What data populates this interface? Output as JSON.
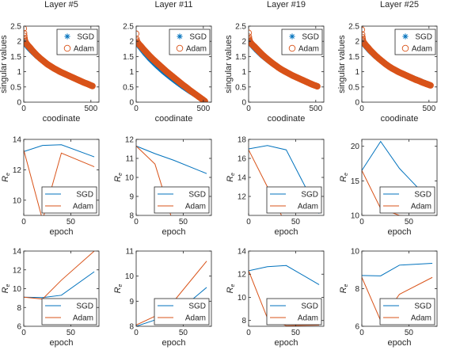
{
  "colors": {
    "sgd": "#0072BD",
    "adam": "#D95319",
    "axis": "#262626"
  },
  "chart_data": [
    {
      "type": "scatter",
      "title": "Layer #5",
      "xlabel": "coodinate",
      "ylabel": "singular values",
      "xlim": [
        0,
        560
      ],
      "ylim": [
        0,
        2.5
      ],
      "xticks": [
        {
          "v": 0,
          "t": "0"
        },
        {
          "v": 500,
          "t": "500"
        }
      ],
      "yticks": [
        {
          "v": 0,
          "t": "0"
        },
        {
          "v": 0.5,
          "t": "0.5"
        },
        {
          "v": 1,
          "t": "1"
        },
        {
          "v": 1.5,
          "t": "1.5"
        },
        {
          "v": 2,
          "t": "2"
        },
        {
          "v": 2.5,
          "t": "2.5"
        }
      ],
      "legend": "top-right",
      "series": [
        {
          "name": "SGD",
          "marker": "star",
          "color": "#0072BD",
          "x": [
            0,
            10,
            30,
            60,
            100,
            150,
            200,
            250,
            300,
            350,
            400,
            450,
            500,
            512
          ],
          "y": [
            2.0,
            1.93,
            1.82,
            1.68,
            1.51,
            1.33,
            1.18,
            1.05,
            0.94,
            0.84,
            0.74,
            0.65,
            0.56,
            0.53
          ]
        },
        {
          "name": "Adam",
          "marker": "circle",
          "color": "#D95319",
          "x": [
            0,
            2,
            4,
            6,
            8,
            10,
            15,
            20,
            30,
            45,
            60,
            80,
            100,
            125,
            150,
            175,
            200,
            225,
            250,
            275,
            300,
            325,
            350,
            375,
            400,
            425,
            450,
            475,
            500,
            512
          ],
          "y": [
            2.42,
            2.27,
            2.18,
            2.1,
            2.05,
            2.01,
            1.97,
            1.93,
            1.87,
            1.8,
            1.72,
            1.62,
            1.53,
            1.43,
            1.34,
            1.25,
            1.18,
            1.11,
            1.05,
            0.99,
            0.94,
            0.89,
            0.84,
            0.79,
            0.74,
            0.69,
            0.64,
            0.6,
            0.55,
            0.53
          ]
        }
      ]
    },
    {
      "type": "scatter",
      "title": "Layer #11",
      "xlabel": "coodinate",
      "ylabel": "",
      "xlim": [
        0,
        560
      ],
      "ylim": [
        0,
        2.5
      ],
      "xticks": [
        {
          "v": 0,
          "t": "0"
        },
        {
          "v": 500,
          "t": "500"
        }
      ],
      "yticks": [
        {
          "v": 0,
          "t": "0"
        },
        {
          "v": 0.5,
          "t": "0.5"
        },
        {
          "v": 1,
          "t": "1"
        },
        {
          "v": 1.5,
          "t": "1.5"
        },
        {
          "v": 2,
          "t": "2"
        },
        {
          "v": 2.5,
          "t": "2.5"
        }
      ],
      "legend": "top-right",
      "series": [
        {
          "name": "SGD",
          "marker": "star",
          "color": "#0072BD",
          "x": [
            0,
            10,
            30,
            60,
            100,
            150,
            200,
            250,
            300,
            350,
            400,
            450,
            500,
            512
          ],
          "y": [
            1.98,
            1.92,
            1.81,
            1.64,
            1.44,
            1.22,
            1.02,
            0.84,
            0.67,
            0.51,
            0.36,
            0.22,
            0.08,
            0.03
          ]
        },
        {
          "name": "Adam",
          "marker": "circle",
          "color": "#D95319",
          "x": [
            0,
            2,
            5,
            10,
            20,
            35,
            50,
            75,
            100,
            125,
            150,
            175,
            200,
            225,
            250,
            275,
            300,
            325,
            350,
            375,
            400,
            425,
            450,
            475,
            500,
            512
          ],
          "y": [
            2.25,
            2.08,
            2.02,
            1.97,
            1.91,
            1.84,
            1.76,
            1.64,
            1.52,
            1.41,
            1.31,
            1.21,
            1.11,
            1.01,
            0.92,
            0.83,
            0.74,
            0.65,
            0.56,
            0.48,
            0.39,
            0.31,
            0.23,
            0.15,
            0.07,
            0.03
          ]
        }
      ]
    },
    {
      "type": "scatter",
      "title": "Layer #19",
      "xlabel": "coodinate",
      "ylabel": "singular values",
      "xlim": [
        0,
        560
      ],
      "ylim": [
        0,
        2.5
      ],
      "xticks": [
        {
          "v": 0,
          "t": "0"
        },
        {
          "v": 500,
          "t": "500"
        }
      ],
      "yticks": [
        {
          "v": 0,
          "t": "0"
        },
        {
          "v": 0.5,
          "t": "0.5"
        },
        {
          "v": 1,
          "t": "1"
        },
        {
          "v": 1.5,
          "t": "1.5"
        },
        {
          "v": 2,
          "t": "2"
        },
        {
          "v": 2.5,
          "t": "2.5"
        }
      ],
      "legend": "top-right",
      "series": [
        {
          "name": "SGD",
          "marker": "star",
          "color": "#0072BD",
          "x": [
            0,
            10,
            30,
            60,
            100,
            150,
            200,
            250,
            300,
            350,
            400,
            450,
            500,
            512
          ],
          "y": [
            2.0,
            1.95,
            1.85,
            1.71,
            1.54,
            1.36,
            1.2,
            1.06,
            0.94,
            0.83,
            0.73,
            0.64,
            0.55,
            0.52
          ]
        },
        {
          "name": "Adam",
          "marker": "circle",
          "color": "#D95319",
          "x": [
            0,
            2,
            4,
            6,
            8,
            10,
            15,
            20,
            30,
            45,
            60,
            80,
            100,
            125,
            150,
            175,
            200,
            225,
            250,
            275,
            300,
            325,
            350,
            375,
            400,
            425,
            450,
            475,
            500,
            512
          ],
          "y": [
            2.28,
            2.15,
            2.08,
            2.04,
            2.01,
            1.99,
            1.96,
            1.93,
            1.88,
            1.82,
            1.75,
            1.66,
            1.57,
            1.47,
            1.38,
            1.29,
            1.21,
            1.13,
            1.06,
            1.0,
            0.94,
            0.88,
            0.83,
            0.78,
            0.73,
            0.68,
            0.63,
            0.58,
            0.54,
            0.52
          ]
        }
      ]
    },
    {
      "type": "scatter",
      "title": "Layer #25",
      "xlabel": "coodinate",
      "ylabel": "singular values",
      "xlim": [
        0,
        560
      ],
      "ylim": [
        0,
        2.5
      ],
      "xticks": [
        {
          "v": 0,
          "t": "0"
        },
        {
          "v": 500,
          "t": "500"
        }
      ],
      "yticks": [
        {
          "v": 0,
          "t": "0"
        },
        {
          "v": 0.5,
          "t": "0.5"
        },
        {
          "v": 1,
          "t": "1"
        },
        {
          "v": 1.5,
          "t": "1.5"
        },
        {
          "v": 2,
          "t": "2"
        },
        {
          "v": 2.5,
          "t": "2.5"
        }
      ],
      "legend": "top-right",
      "series": [
        {
          "name": "SGD",
          "marker": "star",
          "color": "#0072BD",
          "x": [
            0,
            10,
            30,
            60,
            100,
            150,
            200,
            250,
            300,
            350,
            400,
            450,
            500,
            512
          ],
          "y": [
            2.0,
            1.94,
            1.84,
            1.69,
            1.52,
            1.34,
            1.18,
            1.05,
            0.94,
            0.85,
            0.76,
            0.67,
            0.58,
            0.55
          ]
        },
        {
          "name": "Adam",
          "marker": "circle",
          "color": "#D95319",
          "x": [
            0,
            2,
            4,
            6,
            8,
            10,
            15,
            20,
            30,
            45,
            60,
            80,
            100,
            125,
            150,
            175,
            200,
            225,
            250,
            275,
            300,
            325,
            350,
            375,
            400,
            425,
            450,
            475,
            500,
            512
          ],
          "y": [
            2.38,
            2.23,
            2.14,
            2.08,
            2.03,
            2.0,
            1.96,
            1.93,
            1.87,
            1.8,
            1.72,
            1.63,
            1.54,
            1.44,
            1.35,
            1.26,
            1.18,
            1.11,
            1.05,
            0.99,
            0.94,
            0.89,
            0.84,
            0.79,
            0.74,
            0.7,
            0.65,
            0.61,
            0.57,
            0.55
          ]
        }
      ]
    },
    {
      "type": "line",
      "xlabel": "epoch",
      "ylabel": "R",
      "xlim": [
        0,
        80
      ],
      "ylim": [
        9,
        14
      ],
      "xticks": [
        {
          "v": 0,
          "t": "0"
        },
        {
          "v": 50,
          "t": "50"
        }
      ],
      "yticks": [
        {
          "v": 10,
          "t": "10"
        },
        {
          "v": 12,
          "t": "12"
        },
        {
          "v": 14,
          "t": "14"
        }
      ],
      "legend": "bottom-right",
      "series": [
        {
          "name": "SGD",
          "color": "#0072BD",
          "x": [
            0,
            20,
            40,
            75
          ],
          "y": [
            13.2,
            13.6,
            13.65,
            12.85
          ]
        },
        {
          "name": "Adam",
          "color": "#D95319",
          "x": [
            0,
            20,
            40,
            75
          ],
          "y": [
            13.3,
            8.7,
            13.1,
            12.2
          ]
        }
      ]
    },
    {
      "type": "line",
      "xlabel": "epoch",
      "ylabel": "R",
      "xlim": [
        0,
        80
      ],
      "ylim": [
        8,
        12
      ],
      "xticks": [
        {
          "v": 0,
          "t": "0"
        },
        {
          "v": 50,
          "t": "50"
        }
      ],
      "yticks": [
        {
          "v": 8,
          "t": "8"
        },
        {
          "v": 9,
          "t": "9"
        },
        {
          "v": 10,
          "t": "10"
        },
        {
          "v": 11,
          "t": "11"
        },
        {
          "v": 12,
          "t": "12"
        }
      ],
      "legend": "bottom-right",
      "series": [
        {
          "name": "SGD",
          "color": "#0072BD",
          "x": [
            0,
            20,
            40,
            75
          ],
          "y": [
            11.65,
            11.25,
            10.9,
            10.2
          ]
        },
        {
          "name": "Adam",
          "color": "#D95319",
          "x": [
            0,
            20,
            40,
            75
          ],
          "y": [
            11.65,
            10.7,
            7.5,
            7.4
          ]
        }
      ]
    },
    {
      "type": "line",
      "xlabel": "epoch",
      "ylabel": "R",
      "xlim": [
        0,
        80
      ],
      "ylim": [
        10,
        18
      ],
      "xticks": [
        {
          "v": 0,
          "t": "0"
        },
        {
          "v": 50,
          "t": "50"
        }
      ],
      "yticks": [
        {
          "v": 12,
          "t": "12"
        },
        {
          "v": 14,
          "t": "14"
        },
        {
          "v": 16,
          "t": "16"
        },
        {
          "v": 18,
          "t": "18"
        }
      ],
      "legend": "bottom-right",
      "series": [
        {
          "name": "SGD",
          "color": "#0072BD",
          "x": [
            0,
            20,
            40,
            75
          ],
          "y": [
            17.0,
            17.35,
            16.9,
            10.2
          ]
        },
        {
          "name": "Adam",
          "color": "#D95319",
          "x": [
            0,
            20,
            40,
            75
          ],
          "y": [
            16.9,
            13.0,
            9.0,
            9.0
          ]
        }
      ]
    },
    {
      "type": "line",
      "xlabel": "epoch",
      "ylabel": "R",
      "xlim": [
        0,
        80
      ],
      "ylim": [
        10,
        21
      ],
      "xticks": [
        {
          "v": 0,
          "t": "0"
        },
        {
          "v": 50,
          "t": "50"
        }
      ],
      "yticks": [
        {
          "v": 10,
          "t": "10"
        },
        {
          "v": 15,
          "t": "15"
        },
        {
          "v": 20,
          "t": "20"
        }
      ],
      "legend": "bottom-right",
      "series": [
        {
          "name": "SGD",
          "color": "#0072BD",
          "x": [
            0,
            20,
            40,
            75
          ],
          "y": [
            16.5,
            20.7,
            16.8,
            11.8
          ]
        },
        {
          "name": "Adam",
          "color": "#D95319",
          "x": [
            0,
            20,
            40,
            75
          ],
          "y": [
            16.5,
            11.0,
            10.0,
            9.6
          ]
        }
      ]
    },
    {
      "type": "line",
      "xlabel": "epoch",
      "ylabel": "R",
      "xlim": [
        0,
        80
      ],
      "ylim": [
        6,
        14
      ],
      "xticks": [
        {
          "v": 0,
          "t": "0"
        },
        {
          "v": 50,
          "t": "50"
        }
      ],
      "yticks": [
        {
          "v": 6,
          "t": "6"
        },
        {
          "v": 8,
          "t": "8"
        },
        {
          "v": 10,
          "t": "10"
        },
        {
          "v": 12,
          "t": "12"
        },
        {
          "v": 14,
          "t": "14"
        }
      ],
      "legend": "bottom-right",
      "series": [
        {
          "name": "SGD",
          "color": "#0072BD",
          "x": [
            0,
            20,
            40,
            75
          ],
          "y": [
            9.1,
            9.05,
            9.3,
            11.8
          ]
        },
        {
          "name": "Adam",
          "color": "#D95319",
          "x": [
            0,
            20,
            40,
            75
          ],
          "y": [
            9.1,
            8.9,
            10.9,
            14.0
          ]
        }
      ]
    },
    {
      "type": "line",
      "xlabel": "epoch",
      "ylabel": "R",
      "xlim": [
        0,
        80
      ],
      "ylim": [
        8,
        11
      ],
      "xticks": [
        {
          "v": 0,
          "t": "0"
        },
        {
          "v": 50,
          "t": "50"
        }
      ],
      "yticks": [
        {
          "v": 8,
          "t": "8"
        },
        {
          "v": 9,
          "t": "9"
        },
        {
          "v": 10,
          "t": "10"
        },
        {
          "v": 11,
          "t": "11"
        }
      ],
      "legend": "bottom-right",
      "series": [
        {
          "name": "SGD",
          "color": "#0072BD",
          "x": [
            0,
            20,
            40,
            75
          ],
          "y": [
            8.0,
            8.25,
            8.45,
            9.55
          ]
        },
        {
          "name": "Adam",
          "color": "#D95319",
          "x": [
            0,
            20,
            40,
            75
          ],
          "y": [
            8.05,
            8.4,
            9.0,
            10.6
          ]
        }
      ]
    },
    {
      "type": "line",
      "xlabel": "epoch",
      "ylabel": "R",
      "xlim": [
        0,
        80
      ],
      "ylim": [
        7.5,
        14
      ],
      "xticks": [
        {
          "v": 0,
          "t": "0"
        },
        {
          "v": 50,
          "t": "50"
        }
      ],
      "yticks": [
        {
          "v": 8,
          "t": "8"
        },
        {
          "v": 10,
          "t": "10"
        },
        {
          "v": 12,
          "t": "12"
        },
        {
          "v": 14,
          "t": "14"
        }
      ],
      "legend": "bottom-right",
      "series": [
        {
          "name": "SGD",
          "color": "#0072BD",
          "x": [
            0,
            20,
            40,
            75
          ],
          "y": [
            12.3,
            12.65,
            12.75,
            11.1
          ]
        },
        {
          "name": "Adam",
          "color": "#D95319",
          "x": [
            0,
            20,
            40,
            75
          ],
          "y": [
            12.3,
            8.2,
            7.55,
            7.6
          ]
        }
      ]
    },
    {
      "type": "line",
      "xlabel": "epoch",
      "ylabel": "R",
      "xlim": [
        0,
        80
      ],
      "ylim": [
        6,
        10
      ],
      "xticks": [
        {
          "v": 0,
          "t": "0"
        },
        {
          "v": 50,
          "t": "50"
        }
      ],
      "yticks": [
        {
          "v": 6,
          "t": "6"
        },
        {
          "v": 8,
          "t": "8"
        },
        {
          "v": 10,
          "t": "10"
        }
      ],
      "legend": "bottom-right",
      "series": [
        {
          "name": "SGD",
          "color": "#0072BD",
          "x": [
            0,
            20,
            40,
            75
          ],
          "y": [
            8.7,
            8.68,
            9.25,
            9.35
          ]
        },
        {
          "name": "Adam",
          "color": "#D95319",
          "x": [
            0,
            20,
            40,
            75
          ],
          "y": [
            8.6,
            6.3,
            7.7,
            8.6
          ]
        }
      ]
    }
  ]
}
